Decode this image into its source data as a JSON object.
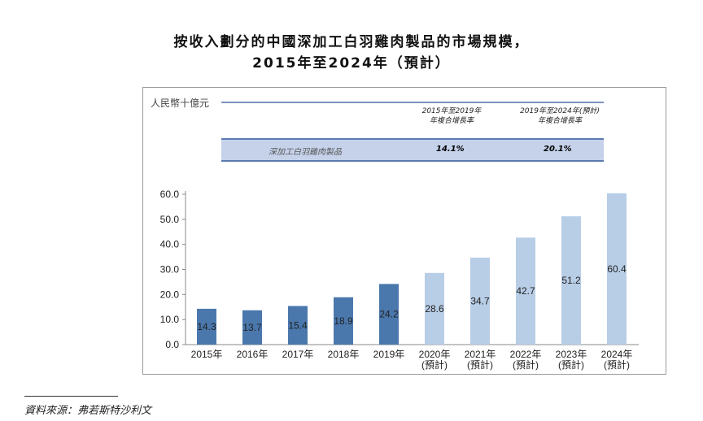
{
  "title_line1": "按收入劃分的中國深加工白羽雞肉製品的市場規模，",
  "title_line2": "2015年至2024年（預計）",
  "unit": "人民幣十億元",
  "cagr_table": {
    "col1": [
      "2015年至2019年",
      "年複合增長率"
    ],
    "col2": [
      "2019年至2024年(預計)",
      "年複合增長率"
    ],
    "row_label": "深加工白羽雞肉製品",
    "val1": "14.1%",
    "val2": "20.1%"
  },
  "source": "資料來源：弗若斯特沙利文",
  "chart_data": {
    "type": "bar",
    "ylabel": "人民幣十億元",
    "ylim": [
      0,
      60
    ],
    "yticks": [
      "0.0",
      "10.0",
      "20.0",
      "30.0",
      "40.0",
      "50.0",
      "60.0"
    ],
    "categories": [
      "2015年",
      "2016年",
      "2017年",
      "2018年",
      "2019年",
      "2020年\n(預計)",
      "2021年\n(預計)",
      "2022年\n(預計)",
      "2023年\n(預計)",
      "2024年\n(預計)"
    ],
    "values": [
      14.3,
      13.7,
      15.4,
      18.9,
      24.2,
      28.6,
      34.7,
      42.7,
      51.2,
      60.4
    ],
    "labels": [
      "14.3",
      "13.7",
      "15.4",
      "18.9",
      "24.2",
      "28.6",
      "34.7",
      "42.7",
      "51.2",
      "60.4"
    ],
    "colors": {
      "actual": "#4a78ad",
      "forecast": "#b8cde6"
    }
  }
}
